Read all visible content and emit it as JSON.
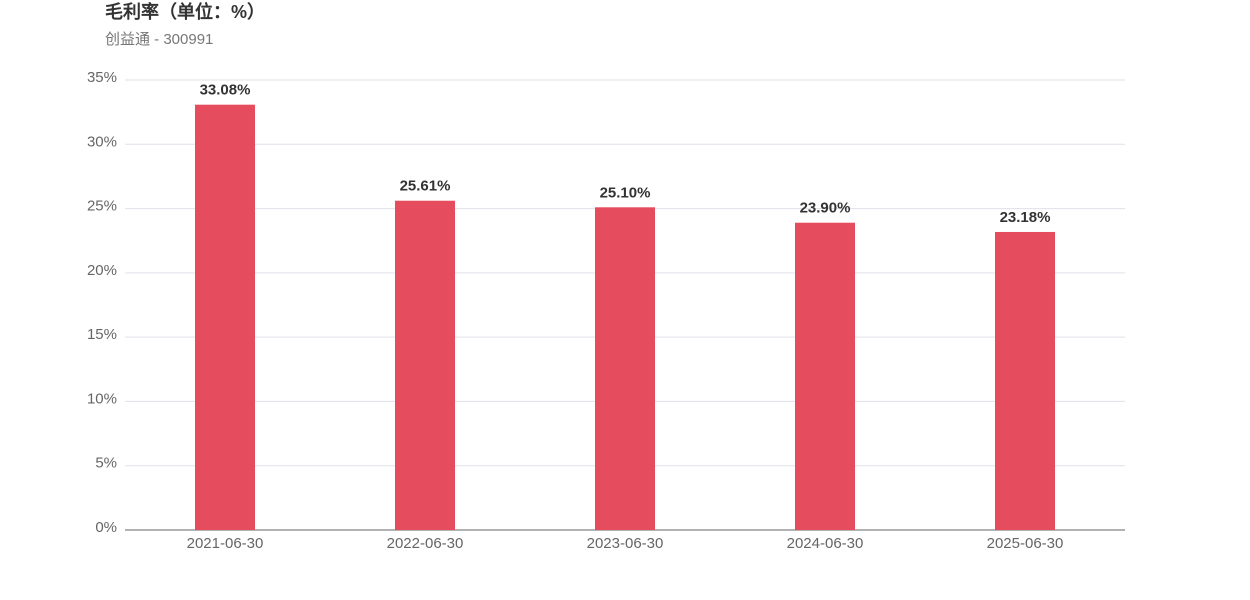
{
  "chart_data": {
    "type": "bar",
    "title": "毛利率（单位：%）",
    "subtitle": "创益通 - 300991",
    "categories": [
      "2021-06-30",
      "2022-06-30",
      "2023-06-30",
      "2024-06-30",
      "2025-06-30"
    ],
    "values": [
      33.08,
      25.61,
      25.1,
      23.9,
      23.18
    ],
    "value_labels": [
      "33.08%",
      "25.61%",
      "25.10%",
      "23.90%",
      "23.18%"
    ],
    "color": "#e54d5f",
    "ylim": [
      0,
      35
    ],
    "yticks": [
      {
        "value": 0,
        "label": "0%"
      },
      {
        "value": 5,
        "label": "5%"
      },
      {
        "value": 10,
        "label": "10%"
      },
      {
        "value": 15,
        "label": "15%"
      },
      {
        "value": 20,
        "label": "20%"
      },
      {
        "value": 25,
        "label": "25%"
      },
      {
        "value": 30,
        "label": "30%"
      },
      {
        "value": 35,
        "label": "35%"
      }
    ],
    "grid": true
  }
}
